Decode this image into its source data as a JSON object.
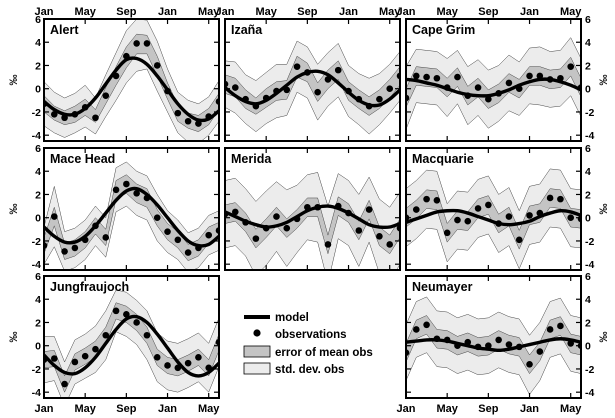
{
  "axis": {
    "x_ticks": [
      "Jan",
      "May",
      "Sep",
      "Jan",
      "May"
    ],
    "y_ticks": [
      "6",
      "4",
      "2",
      "0",
      "-2",
      "-4"
    ],
    "ylabel": "‰"
  },
  "legend": {
    "model": "model",
    "observations": "observations",
    "error": "error of mean obs",
    "std": "std. dev. obs"
  },
  "colors": {
    "model": "#000000",
    "std": "#ececec",
    "error": "#c4c4c4"
  },
  "chart_data": [
    {
      "type": "line",
      "title": "Alert",
      "ylim": [
        -4.5,
        6
      ],
      "xlim": [
        0,
        17
      ],
      "model": [
        -1.1,
        -1.8,
        -2.2,
        -2.2,
        -1.7,
        -0.8,
        0.4,
        1.6,
        2.5,
        2.6,
        2.1,
        1.1,
        -0.1,
        -1.3,
        -2.2,
        -2.7,
        -2.6,
        -1.9
      ],
      "obs": [
        -1.3,
        -2.2,
        -2.5,
        -2.2,
        -1.6,
        -2.5,
        -0.6,
        1.1,
        2.8,
        3.9,
        3.9,
        2.0,
        -0.2,
        -2.1,
        -2.8,
        -3.0,
        -2.4,
        -1.1
      ],
      "err_lo": [
        -2.0,
        -2.7,
        -3.1,
        -2.9,
        -2.3,
        -2.9,
        -1.3,
        0.3,
        1.8,
        3.0,
        3.0,
        1.1,
        -0.9,
        -2.8,
        -3.4,
        -3.7,
        -3.1,
        -1.8
      ],
      "err_hi": [
        -0.6,
        -1.5,
        -1.9,
        -1.5,
        -0.9,
        -1.8,
        0.1,
        1.9,
        3.6,
        4.7,
        4.6,
        2.8,
        0.5,
        -1.4,
        -2.1,
        -2.3,
        -1.7,
        -0.4
      ],
      "std_lo": [
        -3.2,
        -3.8,
        -4.2,
        -3.8,
        -3.3,
        -3.9,
        -2.4,
        -1.0,
        0.5,
        1.5,
        1.7,
        -0.2,
        -2.0,
        -3.8,
        -4.6,
        -4.7,
        -4.0,
        -2.8
      ],
      "std_hi": [
        0.6,
        -0.3,
        -0.8,
        -0.4,
        0.3,
        -0.8,
        1.2,
        3.1,
        5.0,
        6.0,
        5.9,
        4.1,
        1.7,
        -0.3,
        -1.0,
        -1.3,
        -0.7,
        0.7
      ]
    },
    {
      "type": "line",
      "title": "Izaña",
      "ylim": [
        -4.5,
        6
      ],
      "xlim": [
        0,
        17
      ],
      "model": [
        0.1,
        -0.6,
        -1.1,
        -1.3,
        -1.0,
        -0.4,
        0.3,
        1.0,
        1.4,
        1.5,
        1.2,
        0.5,
        -0.3,
        -1.0,
        -1.4,
        -1.4,
        -0.9,
        -0.1
      ],
      "obs": [
        0.4,
        0.1,
        -0.9,
        -1.5,
        -0.8,
        -0.2,
        -0.1,
        1.9,
        1.4,
        -0.3,
        0.8,
        1.6,
        -0.2,
        -0.9,
        -1.5,
        -0.9,
        0.0,
        1.1
      ],
      "err_lo": [
        -0.4,
        -0.7,
        -1.7,
        -2.2,
        -1.6,
        -1.0,
        -0.9,
        1.0,
        0.6,
        -1.1,
        0.0,
        0.8,
        -1.0,
        -1.7,
        -2.3,
        -1.7,
        -0.8,
        0.3
      ],
      "err_hi": [
        1.2,
        0.9,
        -0.1,
        -0.8,
        0.0,
        0.6,
        0.7,
        2.8,
        2.2,
        0.5,
        1.6,
        2.4,
        0.6,
        -0.1,
        -0.7,
        -0.1,
        0.8,
        1.9
      ],
      "std_lo": [
        -1.6,
        -2.1,
        -3.0,
        -3.7,
        -3.0,
        -2.5,
        -2.3,
        -0.3,
        -0.8,
        -2.7,
        -1.5,
        -0.7,
        -2.4,
        -3.1,
        -3.9,
        -3.1,
        -2.1,
        -1.0
      ],
      "std_hi": [
        2.4,
        2.3,
        1.2,
        0.7,
        1.4,
        2.1,
        2.1,
        4.1,
        3.6,
        2.1,
        3.1,
        3.9,
        2.0,
        1.3,
        0.9,
        1.3,
        2.1,
        3.2
      ]
    },
    {
      "type": "line",
      "title": "Cape Grim",
      "ylim": [
        -4.5,
        6
      ],
      "xlim": [
        0,
        17
      ],
      "model": [
        0.8,
        0.7,
        0.5,
        0.3,
        0.0,
        -0.3,
        -0.5,
        -0.6,
        -0.6,
        -0.4,
        -0.1,
        0.3,
        0.6,
        0.8,
        0.8,
        0.6,
        0.3,
        -0.1
      ],
      "obs": [
        -0.8,
        1.1,
        1.0,
        0.9,
        0.1,
        1.0,
        -0.6,
        0.1,
        -0.9,
        -0.4,
        0.5,
        0.0,
        1.1,
        1.1,
        0.8,
        0.9,
        1.9,
        0.1
      ],
      "err_lo": [
        -1.6,
        0.3,
        0.2,
        0.1,
        -0.7,
        0.2,
        -1.4,
        -0.7,
        -1.7,
        -1.2,
        -0.3,
        -0.8,
        0.3,
        0.3,
        0.0,
        0.1,
        1.1,
        -0.7
      ],
      "err_hi": [
        0.0,
        1.9,
        1.8,
        1.7,
        0.9,
        1.8,
        0.2,
        0.9,
        -0.1,
        0.4,
        1.3,
        0.8,
        1.9,
        1.9,
        1.6,
        1.7,
        2.7,
        0.9
      ],
      "std_lo": [
        -3.5,
        -1.2,
        -1.3,
        -1.4,
        -2.4,
        -1.3,
        -3.1,
        -2.3,
        -3.4,
        -2.8,
        -1.9,
        -2.3,
        -1.3,
        -1.4,
        -1.6,
        -1.5,
        -0.6,
        -2.4
      ],
      "std_hi": [
        1.9,
        3.4,
        3.3,
        3.2,
        2.6,
        3.3,
        1.9,
        2.5,
        1.6,
        2.0,
        2.9,
        2.3,
        3.5,
        3.6,
        3.2,
        3.3,
        4.4,
        2.6
      ]
    },
    {
      "type": "line",
      "title": "Mace Head",
      "ylim": [
        -4.5,
        6
      ],
      "xlim": [
        0,
        17
      ],
      "model": [
        -0.8,
        -1.6,
        -2.1,
        -2.1,
        -1.6,
        -0.7,
        0.4,
        1.5,
        2.3,
        2.5,
        2.0,
        1.1,
        0.0,
        -1.1,
        -2.0,
        -2.4,
        -2.3,
        -1.6
      ],
      "obs": [
        -2.4,
        0.1,
        -2.9,
        -2.6,
        -1.9,
        -0.7,
        -1.7,
        2.4,
        2.9,
        2.1,
        1.7,
        0.0,
        -1.2,
        -1.9,
        -3.0,
        -2.6,
        -1.5,
        -1.1
      ],
      "err_lo": [
        -3.1,
        -0.7,
        -3.6,
        -3.3,
        -2.6,
        -1.4,
        -2.4,
        1.6,
        2.1,
        1.3,
        0.9,
        -0.7,
        -1.9,
        -2.6,
        -3.7,
        -3.3,
        -2.2,
        -1.8
      ],
      "err_hi": [
        -1.7,
        0.9,
        -2.2,
        -1.9,
        -1.2,
        0.0,
        -1.0,
        3.2,
        3.7,
        2.9,
        2.5,
        0.7,
        -0.5,
        -1.2,
        -2.3,
        -1.9,
        -0.8,
        -0.4
      ],
      "std_lo": [
        -4.0,
        -2.5,
        -4.6,
        -4.3,
        -3.6,
        -2.4,
        -3.4,
        0.5,
        1.0,
        0.2,
        -0.2,
        -2.0,
        -3.0,
        -3.6,
        -4.7,
        -4.3,
        -3.2,
        -2.8
      ],
      "std_hi": [
        -0.8,
        2.7,
        -1.2,
        -0.9,
        -0.2,
        1.0,
        0.0,
        4.3,
        4.8,
        4.0,
        3.6,
        2.0,
        0.6,
        -0.2,
        -1.3,
        -0.9,
        0.2,
        0.6
      ]
    },
    {
      "type": "line",
      "title": "Merida",
      "ylim": [
        -4.5,
        6
      ],
      "xlim": [
        0,
        17
      ],
      "model": [
        0.5,
        0.1,
        -0.3,
        -0.6,
        -0.8,
        -0.7,
        -0.4,
        0.1,
        0.6,
        0.9,
        1.0,
        0.8,
        0.4,
        -0.1,
        -0.6,
        -0.8,
        -0.8,
        -0.5
      ],
      "obs": [
        0.3,
        0.5,
        -0.4,
        -1.8,
        -0.9,
        0.1,
        -0.9,
        -0.1,
        0.9,
        0.9,
        -2.3,
        1.0,
        0.4,
        -1.1,
        0.7,
        -1.6,
        -2.3,
        -0.9
      ],
      "err_lo": [
        -0.5,
        -0.3,
        -1.2,
        -2.6,
        -1.7,
        -0.7,
        -1.7,
        -0.9,
        0.1,
        0.1,
        -3.1,
        0.2,
        -0.4,
        -1.9,
        -0.1,
        -2.4,
        -3.1,
        -1.7
      ],
      "err_hi": [
        1.1,
        1.3,
        0.4,
        -1.0,
        -0.1,
        0.9,
        -0.1,
        0.7,
        1.7,
        1.7,
        -1.5,
        1.8,
        1.2,
        -0.3,
        1.5,
        -0.8,
        -1.5,
        -0.1
      ],
      "std_lo": [
        -2.6,
        -2.4,
        -3.3,
        -5.0,
        -4.1,
        -2.9,
        -4.2,
        -3.0,
        -1.9,
        -2.1,
        -5.6,
        -1.8,
        -2.4,
        -4.2,
        -2.1,
        -4.8,
        -5.5,
        -4.0
      ],
      "std_hi": [
        3.2,
        3.4,
        2.5,
        1.4,
        2.3,
        3.1,
        2.4,
        2.8,
        3.7,
        3.9,
        1.0,
        3.8,
        3.2,
        2.0,
        3.5,
        1.6,
        0.9,
        2.2
      ]
    },
    {
      "type": "line",
      "title": "Macquarie",
      "ylim": [
        -4.5,
        6
      ],
      "xlim": [
        0,
        17
      ],
      "model": [
        -0.4,
        -0.1,
        0.2,
        0.5,
        0.6,
        0.6,
        0.4,
        0.1,
        -0.2,
        -0.5,
        -0.6,
        -0.5,
        -0.3,
        0.1,
        0.4,
        0.6,
        0.5,
        0.2
      ],
      "obs": [
        0.0,
        0.7,
        1.6,
        1.5,
        -1.3,
        -0.2,
        -0.3,
        0.8,
        1.1,
        -0.5,
        0.1,
        -1.9,
        0.2,
        0.4,
        1.7,
        1.6,
        0.0,
        -0.1
      ],
      "err_lo": [
        -0.8,
        -0.1,
        0.8,
        0.7,
        -2.1,
        -1.0,
        -1.1,
        0.0,
        0.3,
        -1.3,
        -0.7,
        -2.7,
        -0.6,
        -0.4,
        0.9,
        0.8,
        -0.8,
        -0.9
      ],
      "err_hi": [
        0.8,
        1.5,
        2.4,
        2.3,
        -0.5,
        0.6,
        0.5,
        1.6,
        1.9,
        0.3,
        0.9,
        -1.1,
        1.0,
        1.2,
        2.5,
        2.4,
        0.8,
        0.7
      ],
      "std_lo": [
        -2.5,
        -1.8,
        -0.9,
        -1.0,
        -3.8,
        -2.7,
        -2.8,
        -1.7,
        -1.4,
        -3.0,
        -2.4,
        -4.4,
        -2.3,
        -2.1,
        -0.8,
        -0.9,
        -2.5,
        -2.6
      ],
      "std_hi": [
        2.5,
        3.2,
        4.1,
        4.0,
        1.2,
        2.3,
        2.2,
        3.3,
        3.6,
        2.0,
        2.6,
        0.6,
        2.7,
        2.9,
        4.2,
        4.1,
        2.5,
        2.4
      ]
    },
    {
      "type": "line",
      "title": "Jungfraujoch",
      "ylim": [
        -4.5,
        6
      ],
      "xlim": [
        0,
        17
      ],
      "model": [
        -0.8,
        -1.7,
        -2.3,
        -2.4,
        -1.9,
        -1.0,
        0.2,
        1.4,
        2.3,
        2.5,
        2.0,
        1.0,
        -0.2,
        -1.4,
        -2.3,
        -2.6,
        -2.3,
        -1.5
      ],
      "obs": [
        -1.2,
        -1.1,
        -3.3,
        -1.4,
        -0.9,
        -0.3,
        0.9,
        3.0,
        2.7,
        2.0,
        0.9,
        -1.0,
        -1.7,
        -1.9,
        -1.5,
        -1.0,
        -1.9,
        0.3
      ],
      "err_lo": [
        -1.9,
        -1.8,
        -4.0,
        -2.1,
        -1.6,
        -1.0,
        0.2,
        2.3,
        2.0,
        1.3,
        0.2,
        -1.7,
        -2.4,
        -2.6,
        -2.2,
        -1.7,
        -2.6,
        -0.4
      ],
      "err_hi": [
        -0.5,
        -0.4,
        -2.6,
        -0.7,
        -0.2,
        0.4,
        1.6,
        3.7,
        3.4,
        2.7,
        1.6,
        -0.3,
        -1.0,
        -1.2,
        -0.8,
        -0.3,
        -1.2,
        1.0
      ],
      "std_lo": [
        -3.2,
        -3.0,
        -5.2,
        -3.3,
        -2.8,
        -2.3,
        -1.2,
        1.2,
        0.8,
        0.1,
        -1.2,
        -3.1,
        -3.8,
        -4.0,
        -3.6,
        -3.1,
        -4.0,
        -1.8
      ],
      "std_hi": [
        0.8,
        0.8,
        -1.4,
        0.5,
        1.0,
        1.7,
        3.0,
        4.8,
        4.6,
        3.9,
        3.0,
        1.1,
        0.4,
        0.2,
        0.6,
        1.1,
        0.2,
        2.4
      ]
    },
    {
      "type": "line",
      "title": "Neumayer",
      "ylim": [
        -4.5,
        6
      ],
      "xlim": [
        0,
        17
      ],
      "model": [
        0.3,
        0.4,
        0.5,
        0.5,
        0.4,
        0.2,
        0.0,
        -0.2,
        -0.3,
        -0.4,
        -0.3,
        -0.1,
        0.1,
        0.3,
        0.5,
        0.6,
        0.5,
        0.3
      ],
      "obs": [
        -0.6,
        1.4,
        1.8,
        0.6,
        0.5,
        0.0,
        0.3,
        -0.1,
        0.0,
        0.5,
        0.1,
        -0.1,
        -1.6,
        -0.5,
        1.4,
        1.7,
        0.2,
        0.0
      ],
      "err_lo": [
        -1.4,
        0.6,
        1.0,
        -0.2,
        -0.3,
        -0.8,
        -0.5,
        -0.9,
        -0.8,
        -0.3,
        -0.7,
        -0.9,
        -2.4,
        -1.3,
        0.6,
        0.9,
        -0.6,
        -0.8
      ],
      "err_hi": [
        0.2,
        2.2,
        2.6,
        1.4,
        1.3,
        0.8,
        1.1,
        0.7,
        0.8,
        1.3,
        0.9,
        0.7,
        -0.8,
        0.3,
        2.2,
        2.5,
        1.0,
        0.8
      ],
      "std_lo": [
        -3.0,
        -1.0,
        -0.6,
        -1.8,
        -1.9,
        -2.4,
        -2.1,
        -2.5,
        -2.4,
        -1.9,
        -2.3,
        -2.5,
        -4.2,
        -3.0,
        -1.0,
        -0.7,
        -2.2,
        -2.4
      ],
      "std_hi": [
        1.8,
        3.8,
        4.2,
        3.0,
        2.9,
        2.4,
        2.7,
        2.3,
        2.4,
        2.9,
        2.5,
        2.3,
        0.9,
        2.0,
        3.8,
        4.1,
        2.6,
        2.4
      ]
    }
  ]
}
